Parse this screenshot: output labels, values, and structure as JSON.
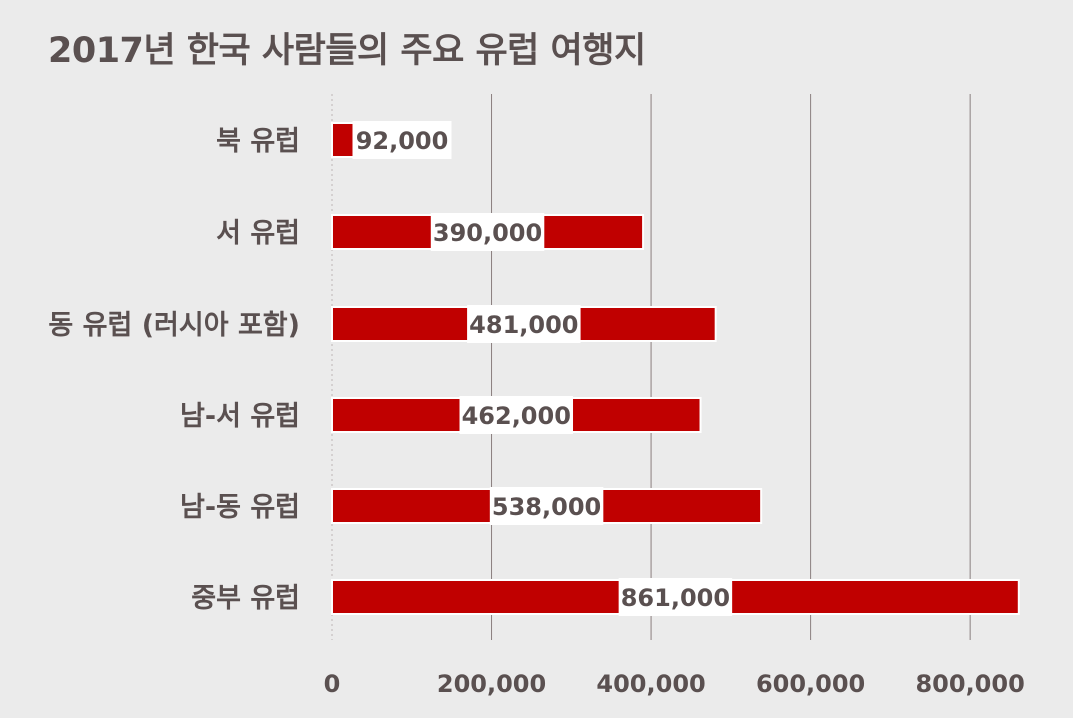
{
  "title": "2017년 한국 사람들의 주요 유럽 여행지",
  "colors": {
    "background": "#ebebeb",
    "bar": "#c00000",
    "text": "#5a5050",
    "grid": "#8a7f7f",
    "label_box": "#ffffff"
  },
  "chart_data": {
    "type": "bar",
    "orientation": "horizontal",
    "title": "2017년 한국 사람들의 주요 유럽 여행지",
    "categories": [
      "북 유럽",
      "서 유럽",
      "동 유럽 (러시아 포함)",
      "남-서 유럽",
      "남-동 유럽",
      "중부 유럽"
    ],
    "values": [
      92000,
      390000,
      481000,
      462000,
      538000,
      861000
    ],
    "data_labels": [
      "92,000",
      "390,000",
      "481,000",
      "462,000",
      "538,000",
      "861,000"
    ],
    "xlim": [
      0,
      860000
    ],
    "xticks": [
      0,
      200000,
      400000,
      600000,
      800000
    ],
    "xtick_labels": [
      "0",
      "200,000",
      "400,000",
      "600,000",
      "800,000"
    ],
    "xlabel": "",
    "ylabel": "",
    "grid": "vertical",
    "legend": "none"
  }
}
